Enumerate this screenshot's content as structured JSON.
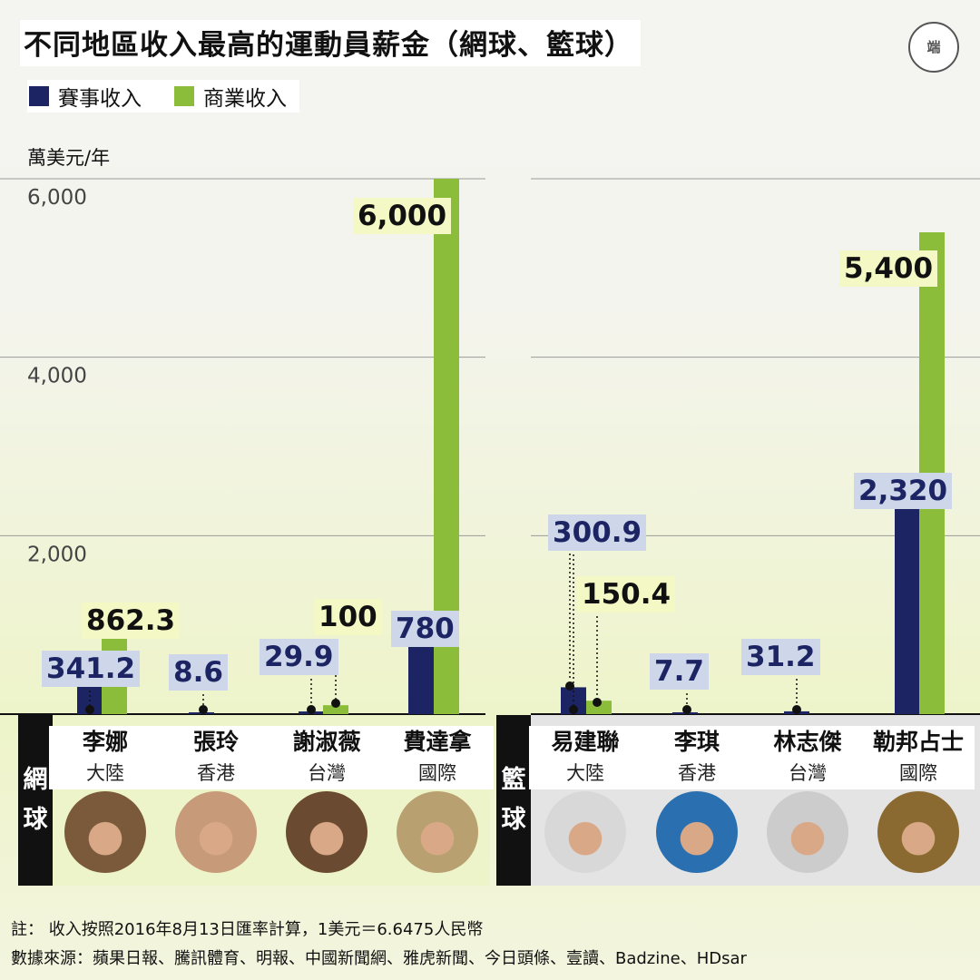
{
  "title": "不同地區收入最高的運動員薪金（網球、籃球）",
  "logo_text": "端",
  "legend": [
    {
      "label": "賽事收入",
      "color": "#1c2463"
    },
    {
      "label": "商業收入",
      "color": "#8cbd3a"
    }
  ],
  "y_axis_label": "萬美元/年",
  "chart_data": {
    "type": "bar",
    "ylabel": "萬美元/年",
    "ylim": [
      0,
      6000
    ],
    "yticks": [
      "2,000",
      "4,000",
      "6,000"
    ],
    "ytick_values": [
      2000,
      4000,
      6000
    ],
    "groups": [
      {
        "sport": "網球",
        "athletes": [
          {
            "name": "李娜",
            "region": "大陸",
            "event": 341.2,
            "event_label": "341.2",
            "commercial": 862.3,
            "commercial_label": "862.3"
          },
          {
            "name": "張玲",
            "region": "香港",
            "event": 8.6,
            "event_label": "8.6",
            "commercial": null,
            "commercial_label": null
          },
          {
            "name": "謝淑薇",
            "region": "台灣",
            "event": 29.9,
            "event_label": "29.9",
            "commercial": 100,
            "commercial_label": "100"
          },
          {
            "name": "費達拿",
            "region": "國際",
            "event": 780,
            "event_label": "780",
            "commercial": 6000,
            "commercial_label": "6,000"
          }
        ]
      },
      {
        "sport": "籃球",
        "athletes": [
          {
            "name": "易建聯",
            "region": "大陸",
            "event": 300.9,
            "event_label": "300.9",
            "commercial": 150.4,
            "commercial_label": "150.4"
          },
          {
            "name": "李琪",
            "region": "香港",
            "event": 7.7,
            "event_label": "7.7",
            "commercial": null,
            "commercial_label": null
          },
          {
            "name": "林志傑",
            "region": "台灣",
            "event": 31.2,
            "event_label": "31.2",
            "commercial": null,
            "commercial_label": null
          },
          {
            "name": "勒邦占士",
            "region": "國際",
            "event": 2320,
            "event_label": "2,320",
            "commercial": 5400,
            "commercial_label": "5,400"
          }
        ]
      }
    ]
  },
  "notes": {
    "note": "註：  收入按照2016年8月13日匯率計算，1美元＝6.6475人民幣",
    "source": "數據來源：蘋果日報、騰訊體育、明報、中國新聞網、雅虎新聞、今日頭條、壹讀、Badzine、HDsar"
  }
}
